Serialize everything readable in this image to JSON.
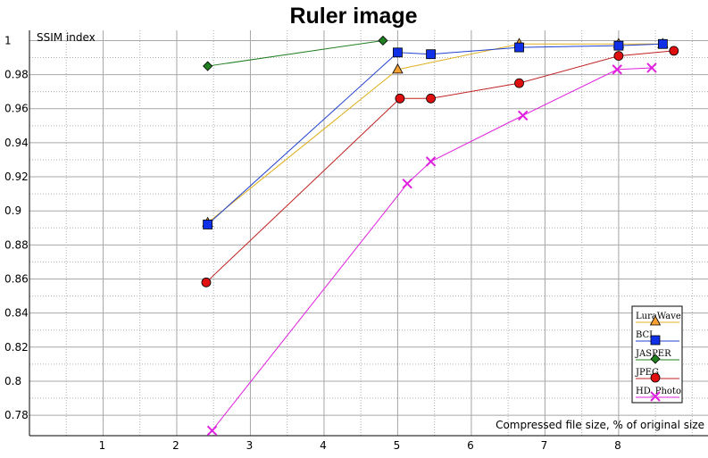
{
  "chart_data": {
    "type": "line",
    "title": "Ruler image",
    "xlabel": "Compressed file size, % of original size",
    "ylabel": "SSIM index",
    "xlim": [
      0,
      9.25
    ],
    "ylim": [
      0.768,
      1.006
    ],
    "xticks": [
      1,
      2,
      3,
      4,
      5,
      6,
      7,
      8
    ],
    "yticks": [
      0.78,
      0.8,
      0.82,
      0.84,
      0.86,
      0.88,
      0.9,
      0.92,
      0.94,
      0.96,
      0.98,
      1
    ],
    "ytick_labels": [
      "0.78",
      "0.8",
      "0.82",
      "0.84",
      "0.86",
      "0.88",
      "0.9",
      "0.92",
      "0.94",
      "0.96",
      "0.98",
      "1"
    ],
    "grid": true,
    "legend_position": "bottom-right",
    "series": [
      {
        "name": "LuraWave",
        "marker": "triangle",
        "line_color": "#e0b020",
        "marker_color": "#f5a030",
        "points": [
          [
            2.42,
            0.893
          ],
          [
            5.0,
            0.983
          ],
          [
            6.65,
            0.998
          ],
          [
            8.0,
            0.998
          ],
          [
            8.6,
            0.998
          ]
        ]
      },
      {
        "name": "BCI",
        "marker": "square",
        "line_color": "#2040d0",
        "marker_color": "#1030e8",
        "points": [
          [
            2.42,
            0.892
          ],
          [
            5.0,
            0.993
          ],
          [
            5.45,
            0.992
          ],
          [
            6.65,
            0.996
          ],
          [
            8.0,
            0.997
          ],
          [
            8.6,
            0.998
          ]
        ]
      },
      {
        "name": "JASPER",
        "marker": "diamond",
        "line_color": "#208020",
        "marker_color": "#208020",
        "points": [
          [
            2.42,
            0.985
          ],
          [
            4.8,
            1.0
          ]
        ]
      },
      {
        "name": "JPEG",
        "marker": "circle",
        "line_color": "#c02020",
        "marker_color": "#e01010",
        "points": [
          [
            2.4,
            0.858
          ],
          [
            5.03,
            0.966
          ],
          [
            5.45,
            0.966
          ],
          [
            6.65,
            0.975
          ],
          [
            8.0,
            0.991
          ],
          [
            8.75,
            0.994
          ]
        ]
      },
      {
        "name": "HD_Photo",
        "marker": "x",
        "line_color": "#e020e0",
        "marker_color": "#e020e0",
        "points": [
          [
            2.48,
            0.771
          ],
          [
            5.13,
            0.916
          ],
          [
            5.45,
            0.929
          ],
          [
            6.7,
            0.956
          ],
          [
            7.98,
            0.983
          ],
          [
            8.45,
            0.984
          ]
        ]
      }
    ]
  }
}
